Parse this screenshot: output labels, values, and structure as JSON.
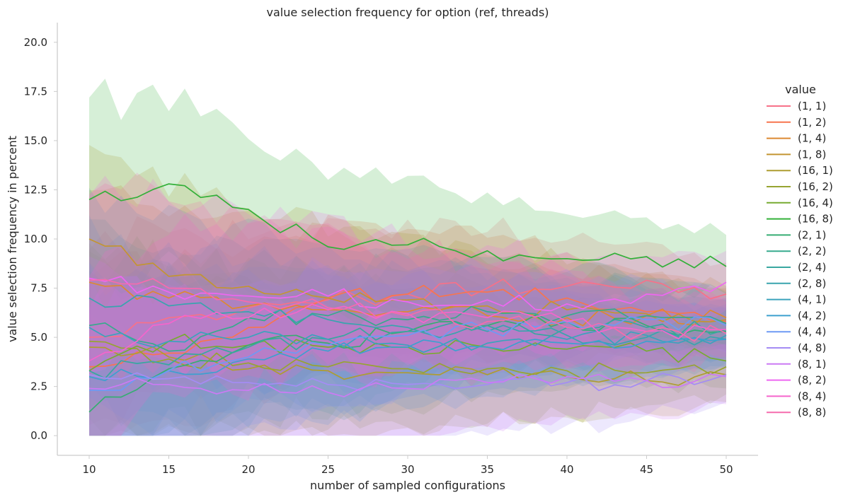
{
  "chart_data": {
    "type": "line",
    "title": "value selection frequency for option (ref, threads)",
    "xlabel": "number of sampled configurations",
    "ylabel": "value selection frequency in percent",
    "xlim": [
      8.0,
      52.0
    ],
    "ylim": [
      -1.0,
      21.0
    ],
    "x_ticks": [
      10,
      15,
      20,
      25,
      30,
      35,
      40,
      45,
      50
    ],
    "y_ticks": [
      0.0,
      2.5,
      5.0,
      7.5,
      10.0,
      12.5,
      15.0,
      17.5,
      20.0
    ],
    "grid": false,
    "legend_title": "value",
    "legend_position": "right",
    "confidence_bands": true,
    "x": [
      10,
      15,
      20,
      25,
      30,
      35,
      40,
      45,
      50
    ],
    "series": [
      {
        "name": "(1, 1)",
        "color": "#f77189",
        "values": [
          5.0,
          6.0,
          6.5,
          6.9,
          7.2,
          7.5,
          7.6,
          7.9,
          7.2
        ]
      },
      {
        "name": "(1, 2)",
        "color": "#f7754f",
        "values": [
          3.5,
          4.2,
          5.5,
          7.0,
          7.2,
          7.3,
          7.0,
          6.3,
          5.8
        ]
      },
      {
        "name": "(1, 4)",
        "color": "#dc8932",
        "values": [
          7.8,
          7.0,
          6.6,
          6.4,
          6.3,
          6.1,
          6.0,
          6.1,
          6.0
        ]
      },
      {
        "name": "(1, 8)",
        "color": "#c39532",
        "values": [
          10.0,
          8.1,
          7.6,
          7.0,
          6.9,
          6.6,
          6.4,
          6.2,
          5.9
        ]
      },
      {
        "name": "(16, 1)",
        "color": "#ae9d31",
        "values": [
          4.5,
          4.0,
          3.4,
          3.3,
          3.2,
          3.1,
          3.0,
          2.8,
          3.1
        ]
      },
      {
        "name": "(16, 2)",
        "color": "#97a431",
        "values": [
          4.8,
          3.9,
          3.7,
          3.5,
          3.4,
          3.4,
          3.3,
          3.2,
          3.5
        ]
      },
      {
        "name": "(16, 4)",
        "color": "#77ab31",
        "values": [
          3.3,
          4.8,
          4.6,
          4.5,
          4.5,
          4.5,
          4.4,
          4.3,
          3.8
        ]
      },
      {
        "name": "(16, 8)",
        "color": "#33b039",
        "values": [
          12.0,
          12.8,
          11.5,
          9.6,
          9.7,
          9.4,
          9.0,
          9.1,
          8.6
        ]
      },
      {
        "name": "(2, 1)",
        "color": "#36ad73",
        "values": [
          1.2,
          3.4,
          4.6,
          4.7,
          5.3,
          5.6,
          5.8,
          5.6,
          5.3
        ]
      },
      {
        "name": "(2, 2)",
        "color": "#37aa8d",
        "values": [
          5.6,
          4.3,
          6.0,
          6.1,
          5.9,
          6.3,
          6.1,
          6.1,
          5.7
        ]
      },
      {
        "name": "(2, 4)",
        "color": "#38a7a0",
        "values": [
          3.3,
          3.6,
          4.5,
          4.9,
          5.3,
          5.6,
          5.5,
          5.5,
          5.4
        ]
      },
      {
        "name": "(2, 8)",
        "color": "#39a4ae",
        "values": [
          7.0,
          6.6,
          6.3,
          5.9,
          5.5,
          5.3,
          5.1,
          5.0,
          4.9
        ]
      },
      {
        "name": "(4, 1)",
        "color": "#3ba3bc",
        "values": [
          5.5,
          4.8,
          5.0,
          4.9,
          4.6,
          4.7,
          4.9,
          5.1,
          5.1
        ]
      },
      {
        "name": "(4, 2)",
        "color": "#3da0cf",
        "values": [
          3.0,
          3.3,
          3.9,
          4.3,
          4.5,
          4.5,
          4.7,
          4.8,
          4.9
        ]
      },
      {
        "name": "(4, 4)",
        "color": "#6e9af4",
        "values": [
          2.3,
          3.3,
          4.0,
          4.6,
          5.1,
          5.4,
          5.8,
          5.9,
          5.6
        ]
      },
      {
        "name": "(4, 8)",
        "color": "#a48cf4",
        "values": [
          3.1,
          2.9,
          2.7,
          2.6,
          2.6,
          2.6,
          2.7,
          2.8,
          3.1
        ]
      },
      {
        "name": "(8, 1)",
        "color": "#cc7af4",
        "values": [
          2.4,
          2.6,
          2.3,
          2.2,
          2.4,
          2.7,
          3.0,
          2.8,
          3.0
        ]
      },
      {
        "name": "(8, 2)",
        "color": "#ee67f1",
        "values": [
          8.0,
          7.3,
          7.1,
          7.1,
          6.8,
          6.9,
          6.7,
          7.2,
          7.8
        ]
      },
      {
        "name": "(8, 4)",
        "color": "#f565cc",
        "values": [
          3.8,
          5.7,
          6.0,
          6.4,
          6.2,
          6.0,
          5.8,
          5.3,
          5.4
        ]
      },
      {
        "name": "(8, 8)",
        "color": "#f66bad",
        "values": [
          7.9,
          7.5,
          6.8,
          6.5,
          6.1,
          5.8,
          5.5,
          5.3,
          5.2
        ]
      }
    ]
  }
}
